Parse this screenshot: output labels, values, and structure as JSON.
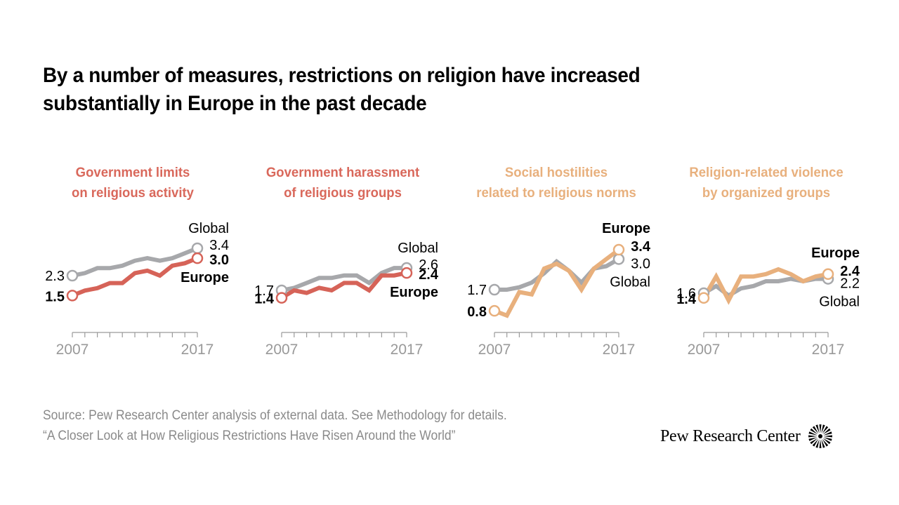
{
  "title": {
    "line1": "By a number of measures, restrictions on religion have increased",
    "line2": "substantially in Europe in the past decade"
  },
  "colors": {
    "government": "#d66358",
    "social": "#e8b07d",
    "global": "#a7a8ab",
    "axis_text": "#999999"
  },
  "chart_data": [
    {
      "type": "line",
      "title": [
        "Government limits",
        "on religious activity"
      ],
      "title_color": "#d9685b",
      "x": [
        2007,
        2008,
        2009,
        2010,
        2011,
        2012,
        2013,
        2014,
        2015,
        2016,
        2017
      ],
      "x_tick_labels": [
        "2007",
        "2017"
      ],
      "series": [
        {
          "name": "Global",
          "color": "#a7a8ab",
          "values": [
            2.3,
            2.4,
            2.6,
            2.6,
            2.7,
            2.9,
            3.0,
            2.9,
            3.0,
            3.2,
            3.4
          ],
          "start_label": "2.3",
          "end_label": "3.4",
          "name_label": "Global"
        },
        {
          "name": "Europe",
          "color": "#d66358",
          "values": [
            1.5,
            1.7,
            1.8,
            2.0,
            2.0,
            2.4,
            2.5,
            2.3,
            2.7,
            2.8,
            3.0
          ],
          "start_label": "1.5",
          "end_label": "3.0",
          "name_label": "Europe"
        }
      ],
      "end_label_order": "global-top"
    },
    {
      "type": "line",
      "title": [
        "Government harassment",
        "of religious groups"
      ],
      "title_color": "#d9685b",
      "x": [
        2007,
        2008,
        2009,
        2010,
        2011,
        2012,
        2013,
        2014,
        2015,
        2016,
        2017
      ],
      "x_tick_labels": [
        "2007",
        "2017"
      ],
      "series": [
        {
          "name": "Global",
          "color": "#a7a8ab",
          "values": [
            1.7,
            1.8,
            2.0,
            2.2,
            2.2,
            2.3,
            2.3,
            2.0,
            2.4,
            2.6,
            2.6
          ],
          "start_label": "1.7",
          "end_label": "2.6",
          "name_label": "Global"
        },
        {
          "name": "Europe",
          "color": "#d66358",
          "values": [
            1.4,
            1.7,
            1.6,
            1.8,
            1.7,
            2.0,
            2.0,
            1.7,
            2.3,
            2.3,
            2.4
          ],
          "start_label": "1.4",
          "end_label": "2.4",
          "name_label": "Europe"
        }
      ],
      "end_label_order": "global-top"
    },
    {
      "type": "line",
      "title": [
        "Social hostilities",
        "related to religious norms"
      ],
      "title_color": "#e8b07d",
      "x": [
        2007,
        2008,
        2009,
        2010,
        2011,
        2012,
        2013,
        2014,
        2015,
        2016,
        2017
      ],
      "x_tick_labels": [
        "2007",
        "2017"
      ],
      "series": [
        {
          "name": "Global",
          "color": "#a7a8ab",
          "values": [
            1.7,
            1.7,
            1.8,
            2.0,
            2.4,
            2.9,
            2.5,
            2.0,
            2.6,
            2.7,
            3.0
          ],
          "start_label": "1.7",
          "end_label": "3.0",
          "name_label": "Global"
        },
        {
          "name": "Europe",
          "color": "#e8b07d",
          "values": [
            0.8,
            0.6,
            1.6,
            1.5,
            2.6,
            2.8,
            2.5,
            1.7,
            2.6,
            3.0,
            3.4
          ],
          "start_label": "0.8",
          "end_label": "3.4",
          "name_label": "Europe"
        }
      ],
      "end_label_order": "europe-top"
    },
    {
      "type": "line",
      "title": [
        "Religion-related violence",
        "by organized groups"
      ],
      "title_color": "#e8b07d",
      "x": [
        2007,
        2008,
        2009,
        2010,
        2011,
        2012,
        2013,
        2014,
        2015,
        2016,
        2017
      ],
      "x_tick_labels": [
        "2007",
        "2017"
      ],
      "series": [
        {
          "name": "Global",
          "color": "#a7a8ab",
          "values": [
            1.6,
            1.9,
            1.5,
            1.8,
            1.9,
            2.1,
            2.1,
            2.2,
            2.1,
            2.2,
            2.2
          ],
          "start_label": "1.6",
          "end_label": "2.2",
          "name_label": "Global"
        },
        {
          "name": "Europe",
          "color": "#e8b07d",
          "values": [
            1.4,
            2.3,
            1.3,
            2.3,
            2.3,
            2.4,
            2.6,
            2.4,
            2.1,
            2.3,
            2.4
          ],
          "start_label": "1.4",
          "end_label": "2.4",
          "name_label": "Europe"
        }
      ],
      "end_label_order": "europe-top"
    }
  ],
  "source": {
    "line1": "Source: Pew Research Center analysis of external data. See Methodology for details.",
    "line2": "“A Closer Look at How Religious Restrictions Have Risen Around the World”"
  },
  "logo": {
    "text": "Pew Research Center",
    "icon": "pew-sunburst-icon"
  }
}
